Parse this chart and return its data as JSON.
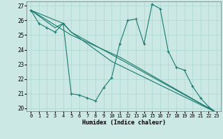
{
  "xlabel": "Humidex (Indice chaleur)",
  "ylabel": "",
  "background_color": "#cce8e4",
  "grid_color": "#aad8d0",
  "line_color": "#1a7a6e",
  "xlim": [
    -0.5,
    23.5
  ],
  "ylim": [
    19.8,
    27.3
  ],
  "yticks": [
    20,
    21,
    22,
    23,
    24,
    25,
    26,
    27
  ],
  "xticks": [
    0,
    1,
    2,
    3,
    4,
    5,
    6,
    7,
    8,
    9,
    10,
    11,
    12,
    13,
    14,
    15,
    16,
    17,
    18,
    19,
    20,
    21,
    22,
    23
  ],
  "lines": [
    {
      "x": [
        0,
        1,
        2,
        3,
        4,
        5,
        6,
        7,
        8,
        9,
        10,
        11,
        12,
        13,
        14,
        15,
        16,
        17,
        18,
        19,
        20,
        21,
        22,
        23
      ],
      "y": [
        26.7,
        25.8,
        25.5,
        25.2,
        25.8,
        21.0,
        20.9,
        20.7,
        20.5,
        21.4,
        22.1,
        24.4,
        26.0,
        26.1,
        24.4,
        27.1,
        26.8,
        23.9,
        22.8,
        22.6,
        21.5,
        20.7,
        20.1,
        19.7
      ],
      "marker": true
    },
    {
      "x": [
        0,
        3,
        4,
        5,
        23
      ],
      "y": [
        26.7,
        25.5,
        25.8,
        25.2,
        19.7
      ],
      "marker": false
    },
    {
      "x": [
        0,
        4,
        5,
        10,
        23
      ],
      "y": [
        26.7,
        25.8,
        25.2,
        23.2,
        19.7
      ],
      "marker": false
    },
    {
      "x": [
        0,
        5,
        11,
        23
      ],
      "y": [
        26.7,
        25.0,
        23.5,
        19.7
      ],
      "marker": false
    }
  ]
}
